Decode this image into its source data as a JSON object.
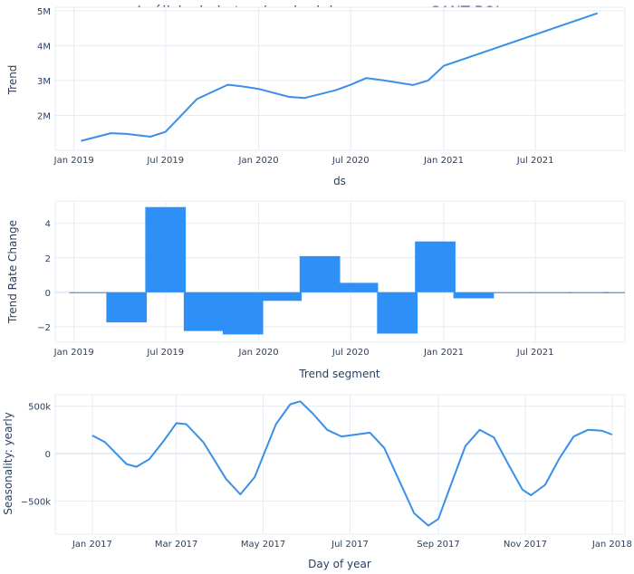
{
  "page": {
    "title": "Análisis de la tendencia del consumo en SANT BOI"
  },
  "colors": {
    "line": "#3a8fe8",
    "bar": "#2e90f7",
    "grid": "#e6ebf3",
    "zero": "#e6ebf3",
    "border": "#e6ebf3",
    "text": "#2a3f5f"
  },
  "chart_data": [
    {
      "type": "line",
      "title": "Análisis de la tendencia del consumo en SANT BOI",
      "xlabel": "ds",
      "ylabel": "Trend",
      "xlim": [
        "2018-11-25",
        "2021-12-25"
      ],
      "ylim": [
        1000000,
        5100000
      ],
      "grid": true,
      "x_ticks": [
        "2019-01-01",
        "2019-07-01",
        "2020-01-01",
        "2020-07-01",
        "2021-01-01",
        "2021-07-01"
      ],
      "x_tick_labels": [
        "Jan 2019",
        "Jul 2019",
        "Jan 2020",
        "Jul 2020",
        "Jan 2021",
        "Jul 2021"
      ],
      "y_ticks": [
        2000000,
        3000000,
        4000000,
        5000000
      ],
      "y_tick_labels": [
        "2M",
        "3M",
        "4M",
        "5M"
      ],
      "series": [
        {
          "x": [
            "2019-01-15",
            "2019-03-15",
            "2019-04-15",
            "2019-06-01",
            "2019-07-01",
            "2019-08-01",
            "2019-09-01",
            "2019-11-01",
            "2019-12-01",
            "2020-01-01",
            "2020-03-01",
            "2020-04-01",
            "2020-06-01",
            "2020-07-01",
            "2020-08-01",
            "2020-09-01",
            "2020-11-01",
            "2020-12-01",
            "2021-01-01",
            "2021-11-01"
          ],
          "y": [
            1270000,
            1490000,
            1470000,
            1390000,
            1530000,
            2000000,
            2470000,
            2880000,
            2830000,
            2760000,
            2530000,
            2500000,
            2720000,
            2880000,
            3070000,
            3010000,
            2870000,
            3000000,
            3420000,
            4930000
          ]
        }
      ]
    },
    {
      "type": "bar",
      "xlabel": "Trend segment",
      "ylabel": "Trend Rate Change",
      "xlim": [
        "2018-11-25",
        "2021-12-25"
      ],
      "ylim": [
        -2.9,
        5.3
      ],
      "grid": true,
      "x_ticks": [
        "2019-01-01",
        "2019-07-01",
        "2020-01-01",
        "2020-07-01",
        "2021-01-01",
        "2021-07-01"
      ],
      "x_tick_labels": [
        "Jan 2019",
        "Jul 2019",
        "Jan 2020",
        "Jul 2020",
        "Jan 2021",
        "Jul 2021"
      ],
      "y_ticks": [
        -2,
        0,
        2,
        4
      ],
      "y_tick_labels": [
        "−2",
        "0",
        "2",
        "4"
      ],
      "bar_width_days": 80,
      "series": [
        {
          "x": [
            "2019-02-01",
            "2019-04-15",
            "2019-07-01",
            "2019-09-15",
            "2019-12-01",
            "2020-02-15",
            "2020-05-01",
            "2020-07-15",
            "2020-10-01",
            "2020-12-15",
            "2021-03-01",
            "2021-05-15",
            "2021-08-01",
            "2021-10-15",
            "2021-12-22"
          ],
          "y": [
            -0.05,
            -1.75,
            4.95,
            -2.25,
            -2.45,
            -0.5,
            2.1,
            0.55,
            -2.4,
            2.95,
            -0.35,
            -0.02,
            -0.02,
            -0.02,
            -0.02
          ]
        }
      ]
    },
    {
      "type": "line",
      "xlabel": "Day of year",
      "ylabel": "Seasonality: yearly",
      "xlim": [
        "2016-12-06",
        "2018-01-10"
      ],
      "ylim": [
        -850000,
        620000
      ],
      "grid": true,
      "x_ticks": [
        "2017-01-01",
        "2017-03-01",
        "2017-05-01",
        "2017-07-01",
        "2017-09-01",
        "2017-11-01",
        "2018-01-01"
      ],
      "x_tick_labels": [
        "Jan 2017",
        "Mar 2017",
        "May 2017",
        "Jul 2017",
        "Sep 2017",
        "Nov 2017",
        "Jan 2018"
      ],
      "y_ticks": [
        -500000,
        0,
        500000
      ],
      "y_tick_labels": [
        "−500k",
        "0",
        "500k"
      ],
      "series": [
        {
          "x": [
            "2017-01-01",
            "2017-01-10",
            "2017-01-25",
            "2017-02-01",
            "2017-02-10",
            "2017-02-20",
            "2017-03-01",
            "2017-03-08",
            "2017-03-20",
            "2017-04-05",
            "2017-04-15",
            "2017-04-25",
            "2017-05-10",
            "2017-05-20",
            "2017-05-27",
            "2017-06-05",
            "2017-06-15",
            "2017-06-25",
            "2017-07-05",
            "2017-07-15",
            "2017-07-25",
            "2017-08-05",
            "2017-08-15",
            "2017-08-25",
            "2017-09-01",
            "2017-09-10",
            "2017-09-20",
            "2017-09-30",
            "2017-10-10",
            "2017-10-20",
            "2017-10-30",
            "2017-11-05",
            "2017-11-15",
            "2017-11-25",
            "2017-12-05",
            "2017-12-15",
            "2017-12-25",
            "2018-01-01"
          ],
          "y": [
            190000,
            120000,
            -110000,
            -140000,
            -60000,
            130000,
            320000,
            310000,
            120000,
            -270000,
            -430000,
            -250000,
            310000,
            520000,
            550000,
            420000,
            250000,
            180000,
            200000,
            220000,
            60000,
            -300000,
            -630000,
            -760000,
            -690000,
            -320000,
            80000,
            250000,
            170000,
            -110000,
            -380000,
            -440000,
            -330000,
            -50000,
            180000,
            250000,
            240000,
            200000
          ]
        }
      ]
    }
  ]
}
